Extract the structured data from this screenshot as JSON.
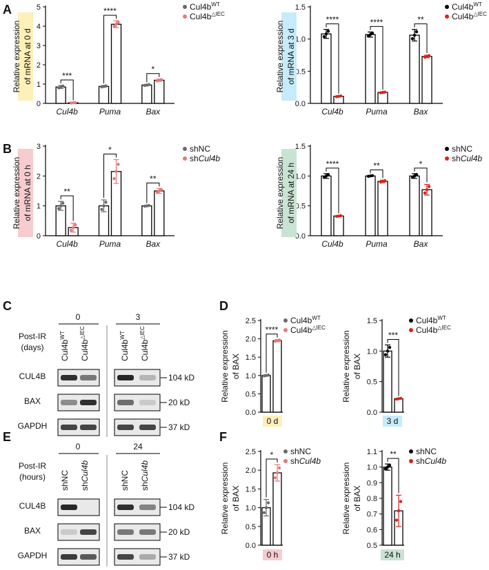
{
  "panel_letters": [
    "A",
    "B",
    "C",
    "D",
    "E",
    "F"
  ],
  "colors": {
    "wt": "#6b6b6b",
    "ko_light": "#e8777b",
    "ko_red": "#e0201c",
    "black": "#000000",
    "box_yellow": "#fdf0b8",
    "box_blue": "#c6ebfa",
    "box_pink": "#f7cccf",
    "box_green": "#c9e3d3"
  },
  "legends": {
    "wt_base": "Cul4b",
    "wt_sup": "WT",
    "ko_base": "Cul4b",
    "ko_sup": "△IEC",
    "shnc": "shNC",
    "shcul_prefix": "sh",
    "shcul_italic": "Cul4b"
  },
  "blots": {
    "C": {
      "post_ir": "Post-IR",
      "unit": "(days)",
      "groups": [
        "0",
        "3"
      ],
      "lanes": [
        "Cul4b",
        "WT",
        "Cul4b",
        "△IEC"
      ],
      "rows": [
        "CUL4B",
        "BAX",
        "GAPDH"
      ],
      "sizes": [
        "104 kD",
        "20 kD",
        "37 kD"
      ]
    },
    "E": {
      "post_ir": "Post-IR",
      "unit": "(hours)",
      "groups": [
        "0",
        "24"
      ],
      "lanes": [
        "shNC",
        "sh",
        "Cul4b"
      ],
      "rows": [
        "CUL4B",
        "BAX",
        "GAPDH"
      ],
      "sizes": [
        "104 kD",
        "20 kD",
        "37 kD"
      ]
    }
  },
  "chart_data": [
    {
      "id": "A-left",
      "type": "bar",
      "ylabel": [
        "Relative expression",
        "of mRNA at 0 d"
      ],
      "label_box": "box_yellow",
      "categories": [
        "Cul4b",
        "Puma",
        "Bax"
      ],
      "series": [
        {
          "name": "Cul4b WT",
          "values": [
            0.85,
            0.88,
            0.95
          ],
          "errors": [
            0.08,
            0.05,
            0.04
          ],
          "color": "wt"
        },
        {
          "name": "Cul4b △IEC",
          "values": [
            0.03,
            4.1,
            1.2
          ],
          "errors": [
            0.02,
            0.18,
            0.06
          ],
          "color": "ko_light"
        }
      ],
      "significance": [
        "***",
        "****",
        "*"
      ],
      "ylim": [
        0,
        5
      ],
      "yticks": [
        "0",
        "1",
        "2",
        "3",
        "4",
        "5"
      ],
      "legend": "wt_ko_light"
    },
    {
      "id": "A-right",
      "type": "bar",
      "ylabel": [
        "Relative expression",
        "of mRNA at 3 d"
      ],
      "label_box": "box_blue",
      "categories": [
        "Cul4b",
        "Puma",
        "Bax"
      ],
      "series": [
        {
          "name": "Cul4b WT",
          "values": [
            1.08,
            1.07,
            1.06
          ],
          "errors": [
            0.07,
            0.04,
            0.09
          ],
          "color": "black"
        },
        {
          "name": "Cul4b △IEC",
          "values": [
            0.11,
            0.17,
            0.73
          ],
          "errors": [
            0.01,
            0.01,
            0.02
          ],
          "color": "ko_red"
        }
      ],
      "significance": [
        "****",
        "****",
        "**"
      ],
      "ylim": [
        0,
        1.5
      ],
      "yticks": [
        "0.0",
        "0.5",
        "1.0",
        "1.5"
      ],
      "legend": "wt_ko_red"
    },
    {
      "id": "B-left",
      "type": "bar",
      "ylabel": [
        "Relative expression",
        "of mRNA at 0 h"
      ],
      "label_box": "box_pink",
      "categories": [
        "Cul4b",
        "Puma",
        "Bax"
      ],
      "series": [
        {
          "name": "shNC",
          "values": [
            1.0,
            1.0,
            1.0
          ],
          "errors": [
            0.15,
            0.2,
            0.02
          ],
          "color": "wt"
        },
        {
          "name": "shCul4b",
          "values": [
            0.27,
            2.15,
            1.5
          ],
          "errors": [
            0.15,
            0.4,
            0.08
          ],
          "color": "ko_light"
        }
      ],
      "significance": [
        "**",
        "*",
        "**"
      ],
      "ylim": [
        0,
        3
      ],
      "yticks": [
        "0",
        "1",
        "2",
        "3"
      ],
      "legend": "sh_light"
    },
    {
      "id": "B-right",
      "type": "bar",
      "ylabel": [
        "Relative expression",
        "of mRNA at 24 h"
      ],
      "label_box": "box_green",
      "categories": [
        "Cul4b",
        "Puma",
        "Bax"
      ],
      "series": [
        {
          "name": "shNC",
          "values": [
            1.0,
            1.0,
            1.0
          ],
          "errors": [
            0.04,
            0.01,
            0.04
          ],
          "color": "black"
        },
        {
          "name": "shCul4b",
          "values": [
            0.33,
            0.91,
            0.77
          ],
          "errors": [
            0.01,
            0.02,
            0.09
          ],
          "color": "ko_red"
        }
      ],
      "significance": [
        "****",
        "**",
        "*"
      ],
      "ylim": [
        0,
        1.5
      ],
      "yticks": [
        "0.0",
        "0.5",
        "1.0",
        "1.5"
      ],
      "legend": "sh_red"
    },
    {
      "id": "D-left",
      "type": "bar",
      "ylabel": [
        "Relative expression",
        "of BAX"
      ],
      "xlabel": "0 d",
      "xlabel_box": "box_yellow",
      "series": [
        {
          "name": "Cul4b WT",
          "values": [
            1.0
          ],
          "errors": [
            0.02
          ],
          "color": "wt"
        },
        {
          "name": "Cul4b △IEC",
          "values": [
            1.95
          ],
          "errors": [
            0.03
          ],
          "color": "ko_light"
        }
      ],
      "significance": [
        "****"
      ],
      "ylim": [
        0,
        2.5
      ],
      "yticks": [
        "0.0",
        "0.5",
        "1.0",
        "1.5",
        "2.0",
        "2.5"
      ],
      "legend": "wt_ko_light"
    },
    {
      "id": "D-right",
      "type": "bar",
      "ylabel": [
        "Relative expression",
        "of BAX"
      ],
      "xlabel": "3 d",
      "xlabel_box": "box_blue",
      "series": [
        {
          "name": "Cul4b WT",
          "values": [
            1.0
          ],
          "errors": [
            0.1
          ],
          "color": "black"
        },
        {
          "name": "Cul4b △IEC",
          "values": [
            0.22
          ],
          "errors": [
            0.01
          ],
          "color": "ko_red"
        }
      ],
      "significance": [
        "***"
      ],
      "ylim": [
        0,
        1.5
      ],
      "yticks": [
        "0.0",
        "0.5",
        "1.0",
        "1.5"
      ],
      "legend": "wt_ko_red"
    },
    {
      "id": "F-left",
      "type": "bar",
      "ylabel": [
        "Relative expression",
        "of BAX"
      ],
      "xlabel": "0 h",
      "xlabel_box": "box_pink",
      "series": [
        {
          "name": "shNC",
          "values": [
            1.0
          ],
          "errors": [
            0.22
          ],
          "color": "wt"
        },
        {
          "name": "shCul4b",
          "values": [
            1.93
          ],
          "errors": [
            0.22
          ],
          "color": "ko_light"
        }
      ],
      "significance": [
        "*"
      ],
      "ylim": [
        0,
        2.5
      ],
      "yticks": [
        "0.0",
        "0.5",
        "1.0",
        "1.5",
        "2.0",
        "2.5"
      ],
      "legend": "sh_light"
    },
    {
      "id": "F-right",
      "type": "bar",
      "ylabel": [
        "Relative expression",
        "of BAX"
      ],
      "xlabel": "24 h",
      "xlabel_box": "box_green",
      "series": [
        {
          "name": "shNC",
          "values": [
            1.0
          ],
          "errors": [
            0.02
          ],
          "color": "black"
        },
        {
          "name": "shCul4b",
          "values": [
            0.72
          ],
          "errors": [
            0.1
          ],
          "color": "ko_red"
        }
      ],
      "significance": [
        "**"
      ],
      "ylim": [
        0.5,
        1.1
      ],
      "yticks": [
        "0.5",
        "0.6",
        "0.7",
        "0.8",
        "0.9",
        "1.0",
        "1.1"
      ],
      "legend": "sh_red"
    }
  ]
}
